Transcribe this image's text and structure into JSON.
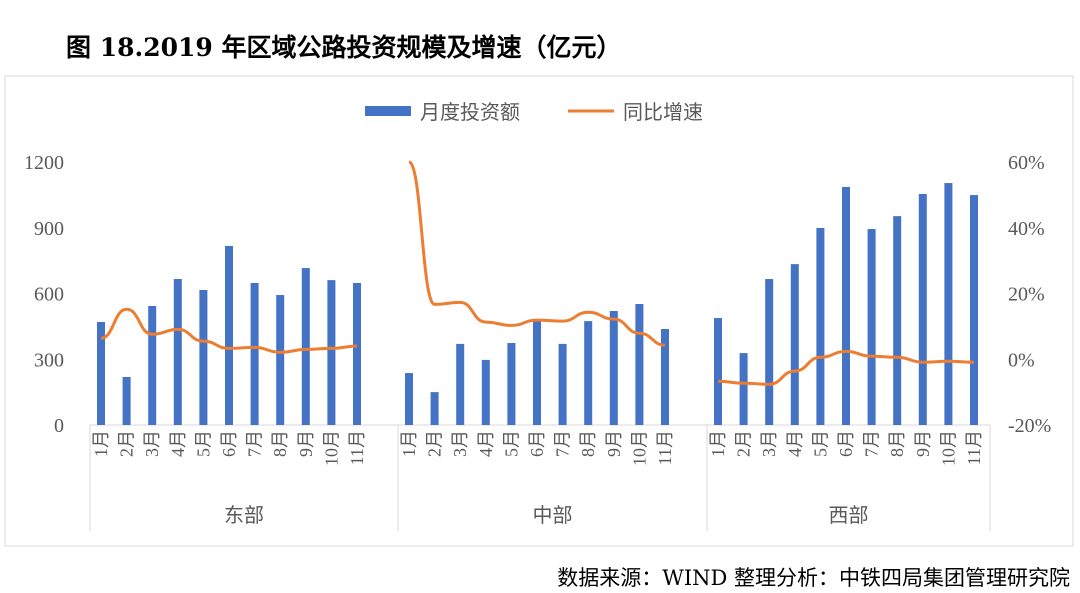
{
  "title": "图 18.2019 年区域公路投资规模及增速（亿元）",
  "footer": "数据来源：WIND   整理分析：中铁四局集团管理研究院",
  "chart_data": {
    "type": "bar+line",
    "groups": [
      "东部",
      "中部",
      "西部"
    ],
    "months": [
      "1月",
      "2月",
      "3月",
      "4月",
      "5月",
      "6月",
      "7月",
      "8月",
      "9月",
      "10月",
      "11月"
    ],
    "legend_position": "top",
    "y_left": {
      "ticks": [
        0,
        300,
        600,
        900,
        1200
      ],
      "ylim": [
        0,
        1200
      ]
    },
    "y_right": {
      "ticks": [
        "-20%",
        "0%",
        "20%",
        "40%",
        "60%"
      ],
      "ylim": [
        -20,
        60
      ]
    },
    "grid": false,
    "colors": {
      "bar": "#4472C4",
      "line": "#ED7D31"
    },
    "series": [
      {
        "name": "月度投资额",
        "type": "bar",
        "axis": "left",
        "values": [
          [
            470,
            219,
            543,
            666,
            616,
            817,
            648,
            593,
            716,
            661,
            648
          ],
          [
            237,
            150,
            370,
            297,
            374,
            479,
            370,
            474,
            520,
            552,
            438
          ],
          [
            488,
            328,
            666,
            734,
            899,
            1086,
            894,
            953,
            1054,
            1104,
            1049
          ]
        ]
      },
      {
        "name": "同比增速",
        "type": "line",
        "axis": "right",
        "values": [
          [
            6.4,
            15.2,
            7.6,
            9.1,
            5.5,
            3.3,
            3.6,
            2.1,
            3.0,
            3.3,
            4.0
          ],
          [
            60,
            16.7,
            17.3,
            11.3,
            10.3,
            11.9,
            11.6,
            14.3,
            12.2,
            7.9,
            4.3
          ],
          [
            -6.7,
            -7.3,
            -7.6,
            -3.6,
            0.6,
            2.4,
            0.9,
            0.6,
            -0.9,
            -0.6,
            -0.9
          ]
        ]
      }
    ]
  }
}
